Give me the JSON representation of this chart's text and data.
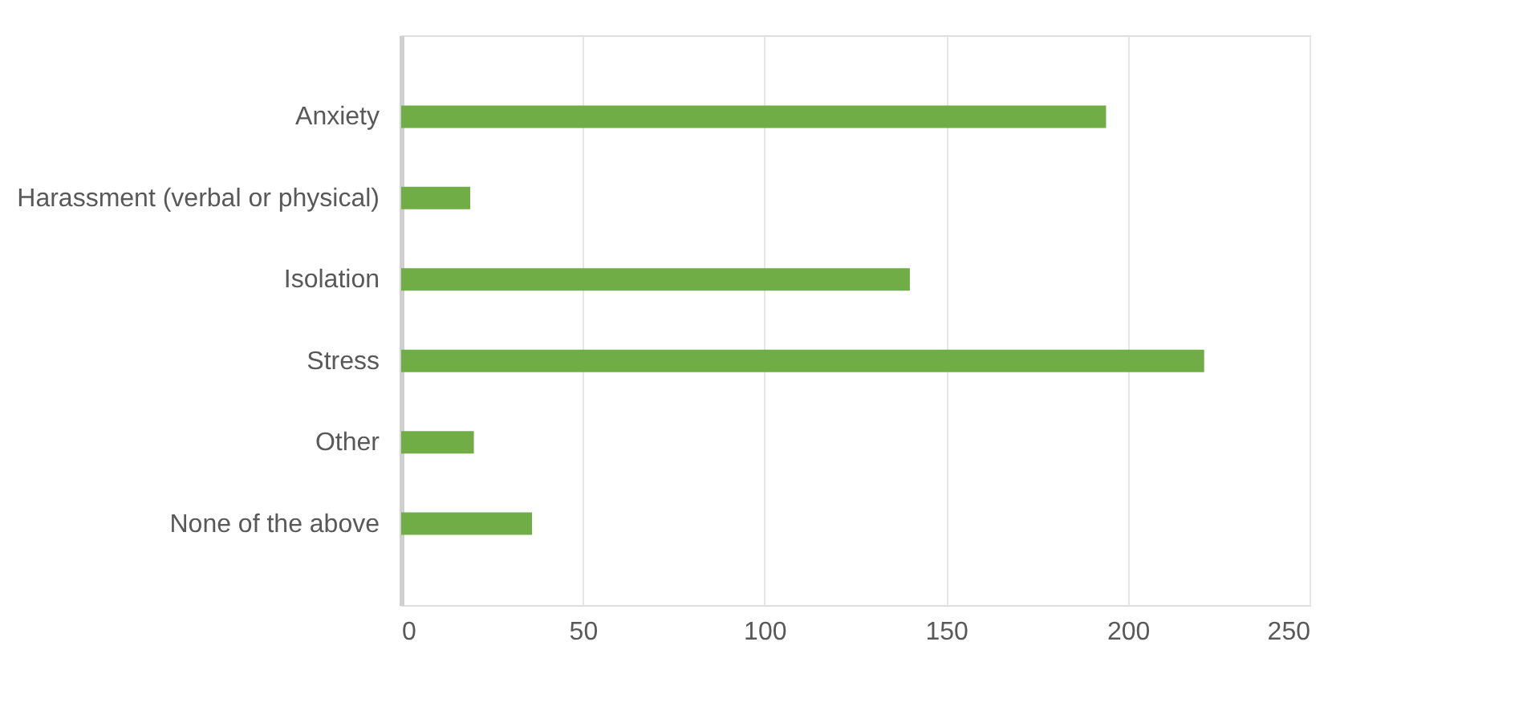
{
  "chart_data": {
    "type": "bar",
    "orientation": "horizontal",
    "categories": [
      "Anxiety",
      "Harassment (verbal or physical)",
      "Isolation",
      "Stress",
      "Other",
      "None of the above"
    ],
    "values": [
      194,
      19,
      140,
      221,
      20,
      36
    ],
    "color": "#70ad47",
    "xlim": [
      0,
      250
    ],
    "xticks": [
      0,
      50,
      100,
      150,
      200,
      250
    ],
    "grid": "x"
  }
}
